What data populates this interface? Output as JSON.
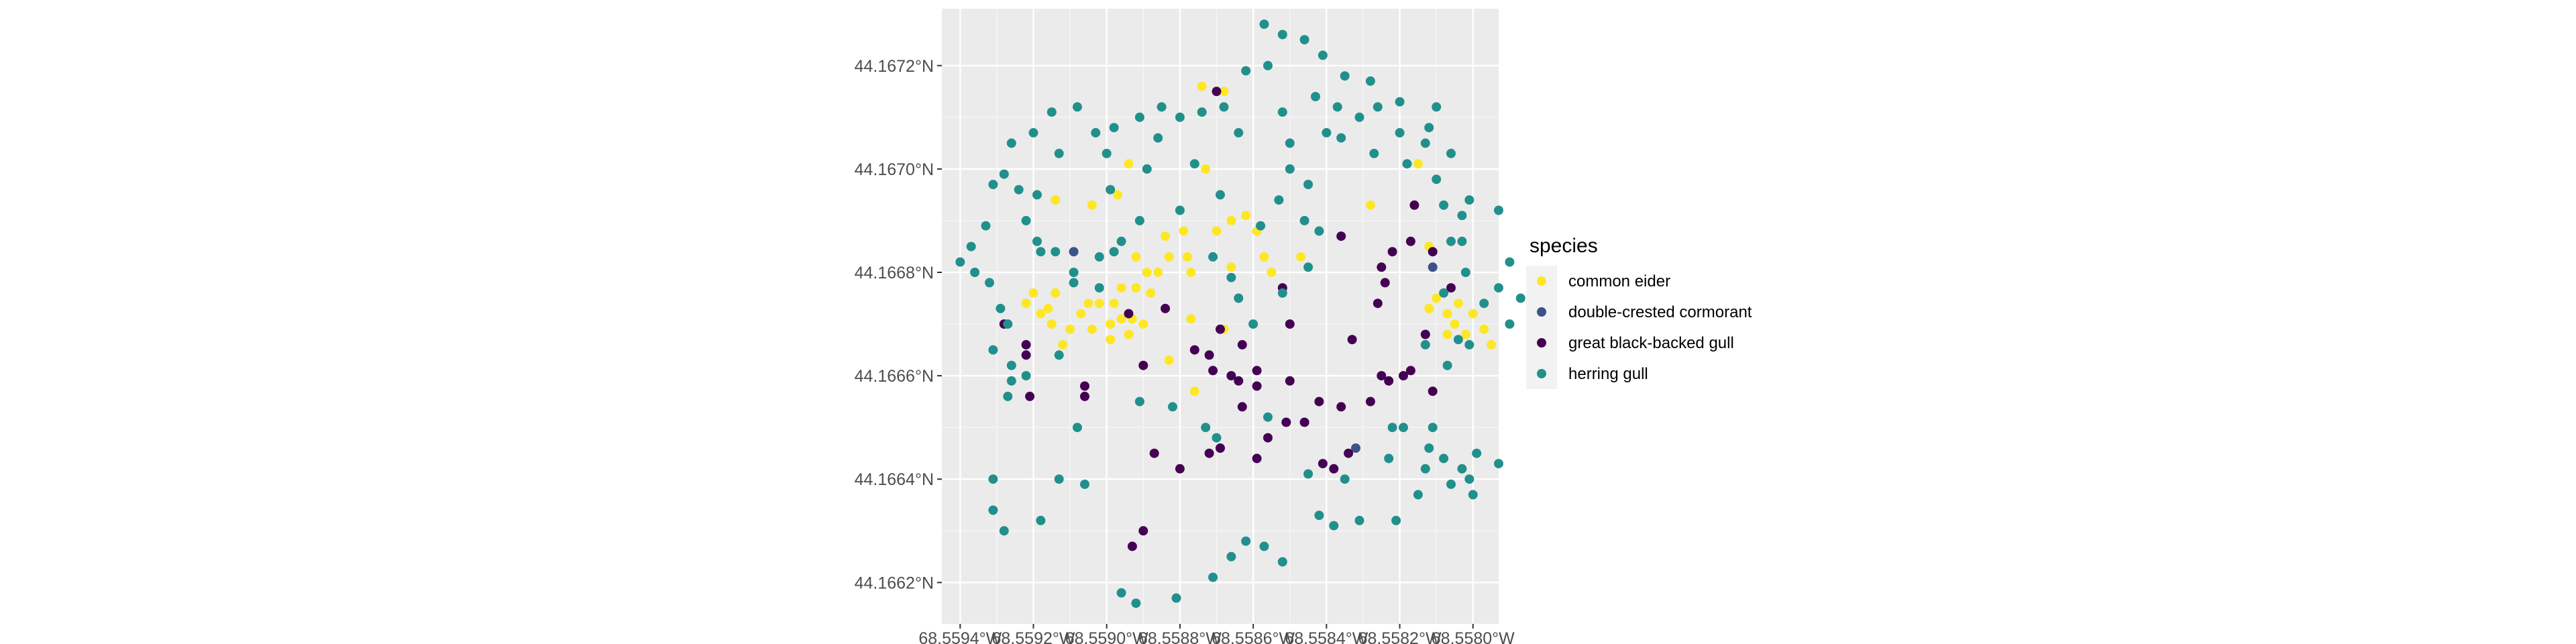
{
  "chart_data": {
    "type": "scatter",
    "title": "",
    "xlabel": "",
    "ylabel": "",
    "grid": true,
    "legend_position": "right",
    "legend_title": "species",
    "xlim": [
      -68.55945,
      -68.55793
    ],
    "ylim": [
      44.16612,
      44.16731
    ],
    "x_ticks": [
      -68.5594,
      -68.5592,
      -68.559,
      -68.5588,
      -68.5586,
      -68.5584,
      -68.5582,
      -68.558
    ],
    "x_tick_labels": [
      "68.5594°W",
      "68.5592°W",
      "68.5590°W",
      "68.5588°W",
      "68.5586°W",
      "68.5584°W",
      "68.5582°W",
      "68.5580°W"
    ],
    "y_ticks": [
      44.1662,
      44.1664,
      44.1666,
      44.1668,
      44.167,
      44.1672
    ],
    "y_tick_labels": [
      "44.1662°N",
      "44.1664°N",
      "44.1666°N",
      "44.1668°N",
      "44.1670°N",
      "44.1672°N"
    ],
    "series": [
      {
        "name": "common eider",
        "color": "#FDE725",
        "points": [
          [
            -68.55914,
            44.16694
          ],
          [
            -68.55894,
            44.16701
          ],
          [
            -68.55897,
            44.16695
          ],
          [
            -68.55892,
            44.16683
          ],
          [
            -68.55889,
            44.1668
          ],
          [
            -68.55892,
            44.16677
          ],
          [
            -68.55886,
            44.1668
          ],
          [
            -68.55883,
            44.16683
          ],
          [
            -68.55879,
            44.16688
          ],
          [
            -68.5587,
            44.16688
          ],
          [
            -68.55866,
            44.1669
          ],
          [
            -68.55862,
            44.16691
          ],
          [
            -68.55859,
            44.16688
          ],
          [
            -68.55878,
            44.16683
          ],
          [
            -68.55884,
            44.16687
          ],
          [
            -68.55888,
            44.16676
          ],
          [
            -68.55896,
            44.16677
          ],
          [
            -68.55905,
            44.16674
          ],
          [
            -68.55907,
            44.16672
          ],
          [
            -68.55899,
            44.1667
          ],
          [
            -68.55902,
            44.16674
          ],
          [
            -68.55896,
            44.16671
          ],
          [
            -68.55899,
            44.16667
          ],
          [
            -68.55904,
            44.16669
          ],
          [
            -68.55893,
            44.16671
          ],
          [
            -68.5589,
            44.1667
          ],
          [
            -68.55898,
            44.16674
          ],
          [
            -68.55894,
            44.16668
          ],
          [
            -68.55922,
            44.16674
          ],
          [
            -68.55918,
            44.16672
          ],
          [
            -68.55915,
            44.1667
          ],
          [
            -68.55916,
            44.16673
          ],
          [
            -68.55914,
            44.16676
          ],
          [
            -68.5592,
            44.16676
          ],
          [
            -68.5591,
            44.16669
          ],
          [
            -68.55912,
            44.16666
          ],
          [
            -68.55883,
            44.16663
          ],
          [
            -68.55877,
            44.1668
          ],
          [
            -68.55877,
            44.16671
          ],
          [
            -68.55866,
            44.16681
          ],
          [
            -68.55857,
            44.16683
          ],
          [
            -68.55855,
            44.1668
          ],
          [
            -68.55847,
            44.16683
          ],
          [
            -68.55868,
            44.16669
          ],
          [
            -68.55876,
            44.16657
          ],
          [
            -68.55874,
            44.16716
          ],
          [
            -68.55868,
            44.16715
          ],
          [
            -68.55873,
            44.167
          ],
          [
            -68.55828,
            44.16693
          ],
          [
            -68.55812,
            44.16673
          ],
          [
            -68.55807,
            44.16672
          ],
          [
            -68.55804,
            44.16674
          ],
          [
            -68.55802,
            44.16668
          ],
          [
            -68.55805,
            44.1667
          ],
          [
            -68.55807,
            44.16668
          ],
          [
            -68.55797,
            44.16669
          ],
          [
            -68.55795,
            44.16666
          ],
          [
            -68.558,
            44.16672
          ],
          [
            -68.5581,
            44.16675
          ],
          [
            -68.55815,
            44.16701
          ],
          [
            -68.55812,
            44.16685
          ],
          [
            -68.55904,
            44.16693
          ]
        ]
      },
      {
        "name": "double-crested cormorant",
        "color": "#3B528B",
        "points": [
          [
            -68.55832,
            44.16646
          ],
          [
            -68.55811,
            44.16681
          ],
          [
            -68.55909,
            44.16684
          ]
        ]
      },
      {
        "name": "great black-backed gull",
        "color": "#440154",
        "points": [
          [
            -68.5587,
            44.16715
          ],
          [
            -68.55906,
            44.16658
          ],
          [
            -68.55922,
            44.16664
          ],
          [
            -68.55921,
            44.16656
          ],
          [
            -68.55922,
            44.16666
          ],
          [
            -68.55928,
            44.1667
          ],
          [
            -68.55906,
            44.16656
          ],
          [
            -68.55887,
            44.16645
          ],
          [
            -68.5589,
            44.16662
          ],
          [
            -68.55884,
            44.16673
          ],
          [
            -68.55872,
            44.16664
          ],
          [
            -68.55871,
            44.16661
          ],
          [
            -68.55866,
            44.1666
          ],
          [
            -68.55859,
            44.16661
          ],
          [
            -68.55863,
            44.16666
          ],
          [
            -68.55864,
            44.16659
          ],
          [
            -68.55869,
            44.16669
          ],
          [
            -68.55863,
            44.16654
          ],
          [
            -68.55856,
            44.16648
          ],
          [
            -68.55852,
            44.16677
          ],
          [
            -68.5585,
            44.16659
          ],
          [
            -68.55846,
            44.16651
          ],
          [
            -68.55842,
            44.16655
          ],
          [
            -68.55836,
            44.16654
          ],
          [
            -68.55833,
            44.16667
          ],
          [
            -68.55836,
            44.16687
          ],
          [
            -68.55825,
            44.16681
          ],
          [
            -68.55826,
            44.16674
          ],
          [
            -68.55824,
            44.16678
          ],
          [
            -68.55822,
            44.16684
          ],
          [
            -68.55817,
            44.16686
          ],
          [
            -68.55811,
            44.16684
          ],
          [
            -68.55806,
            44.16677
          ],
          [
            -68.55813,
            44.16668
          ],
          [
            -68.55825,
            44.1666
          ],
          [
            -68.55828,
            44.16655
          ],
          [
            -68.55823,
            44.16659
          ],
          [
            -68.55817,
            44.16661
          ],
          [
            -68.55811,
            44.16657
          ],
          [
            -68.55819,
            44.1666
          ],
          [
            -68.55841,
            44.16643
          ],
          [
            -68.55834,
            44.16645
          ],
          [
            -68.55851,
            44.16651
          ],
          [
            -68.5585,
            44.1667
          ],
          [
            -68.5588,
            44.16642
          ],
          [
            -68.5589,
            44.1663
          ],
          [
            -68.55893,
            44.16627
          ],
          [
            -68.55872,
            44.16645
          ],
          [
            -68.55869,
            44.16646
          ],
          [
            -68.55859,
            44.16658
          ],
          [
            -68.55876,
            44.16665
          ],
          [
            -68.55894,
            44.16672
          ],
          [
            -68.55816,
            44.16693
          ],
          [
            -68.55859,
            44.16644
          ],
          [
            -68.55838,
            44.16642
          ]
        ]
      },
      {
        "name": "herring gull",
        "color": "#21908C",
        "points": [
          [
            -68.55857,
            44.16728
          ],
          [
            -68.55852,
            44.16726
          ],
          [
            -68.55846,
            44.16725
          ],
          [
            -68.55841,
            44.16722
          ],
          [
            -68.55835,
            44.16718
          ],
          [
            -68.55856,
            44.1672
          ],
          [
            -68.55862,
            44.16719
          ],
          [
            -68.55868,
            44.16712
          ],
          [
            -68.55874,
            44.16711
          ],
          [
            -68.5588,
            44.1671
          ],
          [
            -68.55885,
            44.16712
          ],
          [
            -68.55891,
            44.1671
          ],
          [
            -68.55898,
            44.16708
          ],
          [
            -68.55903,
            44.16707
          ],
          [
            -68.55908,
            44.16712
          ],
          [
            -68.55915,
            44.16711
          ],
          [
            -68.5592,
            44.16707
          ],
          [
            -68.55926,
            44.16705
          ],
          [
            -68.55931,
            44.16697
          ],
          [
            -68.55928,
            44.16699
          ],
          [
            -68.55933,
            44.16689
          ],
          [
            -68.55937,
            44.16685
          ],
          [
            -68.5594,
            44.16682
          ],
          [
            -68.55936,
            44.1668
          ],
          [
            -68.55932,
            44.16678
          ],
          [
            -68.55929,
            44.16673
          ],
          [
            -68.55927,
            44.1667
          ],
          [
            -68.55931,
            44.16665
          ],
          [
            -68.55926,
            44.16662
          ],
          [
            -68.55926,
            44.16659
          ],
          [
            -68.55927,
            44.16656
          ],
          [
            -68.55931,
            44.1664
          ],
          [
            -68.55928,
            44.1663
          ],
          [
            -68.55931,
            44.16634
          ],
          [
            -68.55918,
            44.16632
          ],
          [
            -68.55906,
            44.16639
          ],
          [
            -68.55896,
            44.16618
          ],
          [
            -68.55892,
            44.16616
          ],
          [
            -68.55881,
            44.16617
          ],
          [
            -68.55871,
            44.16621
          ],
          [
            -68.55866,
            44.16625
          ],
          [
            -68.55862,
            44.16628
          ],
          [
            -68.55857,
            44.16627
          ],
          [
            -68.55852,
            44.16624
          ],
          [
            -68.55842,
            44.16633
          ],
          [
            -68.55838,
            44.16631
          ],
          [
            -68.55831,
            44.16632
          ],
          [
            -68.55821,
            44.16632
          ],
          [
            -68.55815,
            44.16637
          ],
          [
            -68.55813,
            44.16642
          ],
          [
            -68.55808,
            44.16644
          ],
          [
            -68.55803,
            44.16642
          ],
          [
            -68.55793,
            44.16643
          ],
          [
            -68.55799,
            44.16645
          ],
          [
            -68.55812,
            44.16646
          ],
          [
            -68.55819,
            44.1665
          ],
          [
            -68.55811,
            44.1665
          ],
          [
            -68.55835,
            44.1664
          ],
          [
            -68.55845,
            44.16641
          ],
          [
            -68.55856,
            44.16652
          ],
          [
            -68.5587,
            44.16648
          ],
          [
            -68.55873,
            44.1665
          ],
          [
            -68.55882,
            44.16654
          ],
          [
            -68.55891,
            44.16655
          ],
          [
            -68.55908,
            44.1665
          ],
          [
            -68.55913,
            44.1664
          ],
          [
            -68.55922,
            44.1666
          ],
          [
            -68.55913,
            44.16664
          ],
          [
            -68.55909,
            44.16678
          ],
          [
            -68.55896,
            44.16686
          ],
          [
            -68.55891,
            44.1669
          ],
          [
            -68.55889,
            44.167
          ],
          [
            -68.55876,
            44.16701
          ],
          [
            -68.55869,
            44.16695
          ],
          [
            -68.55853,
            44.16694
          ],
          [
            -68.55858,
            44.16689
          ],
          [
            -68.55864,
            44.16675
          ],
          [
            -68.5586,
            44.1667
          ],
          [
            -68.55852,
            44.16676
          ],
          [
            -68.55845,
            44.16681
          ],
          [
            -68.55842,
            44.16688
          ],
          [
            -68.55846,
            44.1669
          ],
          [
            -68.55845,
            44.16697
          ],
          [
            -68.5585,
            44.16705
          ],
          [
            -68.55852,
            44.16711
          ],
          [
            -68.55843,
            44.16714
          ],
          [
            -68.55837,
            44.16712
          ],
          [
            -68.55831,
            44.1671
          ],
          [
            -68.55826,
            44.16712
          ],
          [
            -68.5582,
            44.16713
          ],
          [
            -68.55813,
            44.16705
          ],
          [
            -68.55806,
            44.16703
          ],
          [
            -68.55808,
            44.16693
          ],
          [
            -68.55803,
            44.16691
          ],
          [
            -68.55806,
            44.16686
          ],
          [
            -68.55802,
            44.1668
          ],
          [
            -68.55808,
            44.16676
          ],
          [
            -68.55797,
            44.16674
          ],
          [
            -68.55793,
            44.16677
          ],
          [
            -68.5579,
            44.16682
          ],
          [
            -68.55787,
            44.16675
          ],
          [
            -68.55793,
            44.16692
          ],
          [
            -68.55801,
            44.16694
          ],
          [
            -68.5581,
            44.16698
          ],
          [
            -68.55818,
            44.16701
          ],
          [
            -68.55812,
            44.16708
          ],
          [
            -68.55828,
            44.16717
          ],
          [
            -68.55836,
            44.16706
          ],
          [
            -68.5584,
            44.16707
          ],
          [
            -68.55864,
            44.16707
          ],
          [
            -68.55886,
            44.16706
          ],
          [
            -68.559,
            44.16703
          ],
          [
            -68.55913,
            44.16703
          ],
          [
            -68.55924,
            44.16696
          ],
          [
            -68.55922,
            44.1669
          ],
          [
            -68.55918,
            44.16684
          ],
          [
            -68.55919,
            44.16686
          ],
          [
            -68.55899,
            44.16696
          ],
          [
            -68.5588,
            44.16692
          ],
          [
            -68.55871,
            44.16683
          ],
          [
            -68.55866,
            44.16679
          ],
          [
            -68.5585,
            44.167
          ],
          [
            -68.55827,
            44.16703
          ],
          [
            -68.5582,
            44.16707
          ],
          [
            -68.5581,
            44.16712
          ],
          [
            -68.55803,
            44.16686
          ],
          [
            -68.5579,
            44.1667
          ],
          [
            -68.55801,
            44.16666
          ],
          [
            -68.55804,
            44.16667
          ],
          [
            -68.55813,
            44.16666
          ],
          [
            -68.55807,
            44.16662
          ],
          [
            -68.55822,
            44.1665
          ],
          [
            -68.55823,
            44.16644
          ],
          [
            -68.55801,
            44.1664
          ],
          [
            -68.55806,
            44.16639
          ],
          [
            -68.558,
            44.16637
          ],
          [
            -68.55919,
            44.16695
          ],
          [
            -68.55914,
            44.16684
          ],
          [
            -68.55909,
            44.1668
          ],
          [
            -68.55902,
            44.16683
          ],
          [
            -68.55902,
            44.16677
          ],
          [
            -68.55898,
            44.16684
          ]
        ]
      }
    ]
  }
}
